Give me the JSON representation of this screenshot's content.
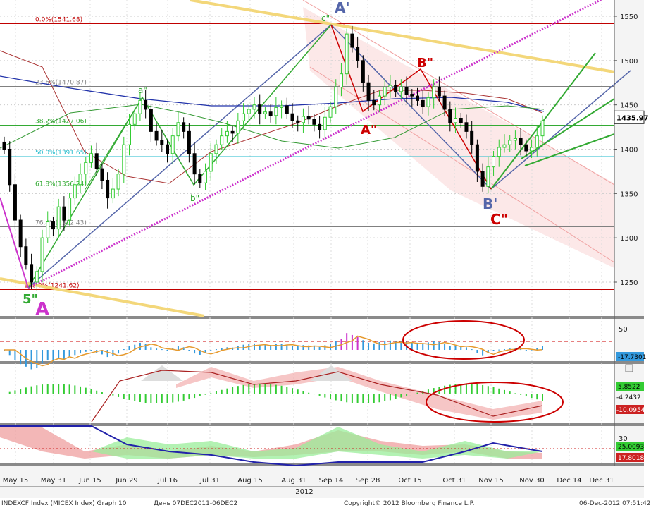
{
  "chart_data": [
    {
      "type": "candlestick",
      "panel": "price",
      "instrument": "INDEXCF Index (MICEX Index)",
      "ylim": [
        1200,
        1570
      ],
      "y_ticks": [
        1250,
        1300,
        1350,
        1400,
        1450,
        1500,
        1550
      ],
      "last_price": "1435.97",
      "x_tick_labels": [
        "May 15",
        "May 31",
        "Jun 15",
        "Jun 29",
        "Jul 16",
        "Jul 31",
        "Aug 15",
        "Aug 31",
        "Sep 14",
        "Sep 28",
        "Oct 15",
        "Oct 31",
        "Nov 15",
        "Nov 30",
        "Dec 14",
        "Dec 31"
      ],
      "year_label": "2012",
      "fib_levels": [
        {
          "label": "0.0%(1541.68)",
          "value": 1541.68,
          "color": "#c00000"
        },
        {
          "label": "23.6%(1470.87)",
          "value": 1470.87,
          "color": "#808080"
        },
        {
          "label": "38.2%(1427.06)",
          "value": 1427.06,
          "color": "#33aa33"
        },
        {
          "label": "50.0%(1391.65)",
          "value": 1391.65,
          "color": "#22bbcc"
        },
        {
          "label": "61.8%(1356.24)",
          "value": 1356.24,
          "color": "#33aa33"
        },
        {
          "label": "76.4%(1312.43)",
          "value": 1312.43,
          "color": "#808080"
        },
        {
          "label": "100.0%(1241.62)",
          "value": 1241.62,
          "color": "#c00000"
        }
      ],
      "wave_labels": [
        "A",
        "A'",
        "B'",
        "5\"",
        "a\"",
        "b\"",
        "c\"",
        "A\"",
        "B\"",
        "C\""
      ],
      "candles_close": [
        1400,
        1360,
        1320,
        1290,
        1270,
        1250,
        1262,
        1300,
        1318,
        1310,
        1335,
        1320,
        1345,
        1360,
        1372,
        1385,
        1395,
        1378,
        1365,
        1345,
        1355,
        1372,
        1405,
        1428,
        1440,
        1455,
        1445,
        1420,
        1410,
        1405,
        1395,
        1415,
        1430,
        1420,
        1395,
        1372,
        1362,
        1375,
        1395,
        1405,
        1415,
        1420,
        1418,
        1432,
        1440,
        1445,
        1450,
        1440,
        1442,
        1438,
        1447,
        1449,
        1440,
        1432,
        1430,
        1437,
        1434,
        1428,
        1422,
        1436,
        1448,
        1470,
        1485,
        1530,
        1515,
        1500,
        1475,
        1455,
        1450,
        1460,
        1470,
        1472,
        1465,
        1470,
        1462,
        1460,
        1455,
        1448,
        1458,
        1470,
        1460,
        1445,
        1430,
        1435,
        1430,
        1420,
        1405,
        1375,
        1358,
        1380,
        1392,
        1402,
        1405,
        1410,
        1412,
        1405,
        1398,
        1402,
        1415,
        1432
      ]
    },
    {
      "type": "line",
      "panel": "oscillator-1",
      "y_ticks": [
        50
      ],
      "values_shown": [
        "-17.7301"
      ]
    },
    {
      "type": "line",
      "panel": "oscillator-2",
      "values_shown": [
        "5.8522",
        "-4.2432",
        "-10.0954"
      ]
    },
    {
      "type": "area",
      "panel": "dmi",
      "y_ticks": [
        30
      ],
      "values_shown": [
        "25.0093",
        "17.8018"
      ]
    }
  ],
  "footer": {
    "left": "INDEXCF Index (MICEX Index) Graph 10",
    "mid": "День 07DEC2011-06DEC2",
    "copyright": "Copyright© 2012 Bloomberg Finance L.P.",
    "right": "06-Dec-2012 07:51:42"
  },
  "colors": {
    "up": "#33cc33",
    "down": "#000000",
    "fib_red": "#c00000",
    "fib_green": "#33aa33",
    "fib_cyan": "#22bbcc",
    "ellipse": "#cc0000",
    "wave_blue": "#5566aa",
    "magenta": "#cc33cc",
    "yellow": "#f3d77a"
  }
}
